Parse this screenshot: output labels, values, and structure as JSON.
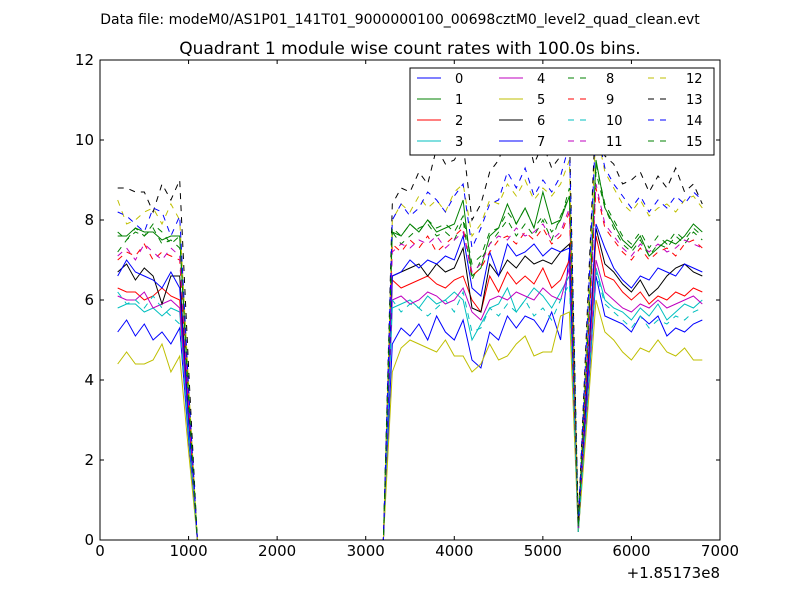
{
  "chart_data": {
    "type": "line",
    "suptitle": "Data file: modeM0/AS1P01_141T01_9000000100_00698cztM0_level2_quad_clean.evt",
    "title": "Quadrant 1 module wise count rates with 100.0s bins.",
    "xlabel": "",
    "ylabel": "",
    "x_offset_label": "+1.85173e8",
    "xlim": [
      0,
      7000
    ],
    "ylim": [
      0,
      12
    ],
    "x_ticks": [
      0,
      1000,
      2000,
      3000,
      4000,
      5000,
      6000,
      7000
    ],
    "y_ticks": [
      0,
      2,
      4,
      6,
      8,
      10,
      12
    ],
    "grid": false,
    "legend_position": "top-right",
    "x": [
      200,
      300,
      400,
      500,
      600,
      700,
      800,
      900,
      1000,
      1100,
      1200,
      1300,
      1400,
      1500,
      1600,
      1700,
      1800,
      1900,
      2000,
      2100,
      2200,
      2300,
      2400,
      2500,
      2600,
      2700,
      2800,
      2900,
      3000,
      3100,
      3200,
      3300,
      3400,
      3500,
      3600,
      3700,
      3800,
      3900,
      4000,
      4100,
      4200,
      4300,
      4400,
      4500,
      4600,
      4700,
      4800,
      4900,
      5000,
      5100,
      5200,
      5300,
      5400,
      5500,
      5600,
      5700,
      5800,
      5900,
      6000,
      6100,
      6200,
      6300,
      6400,
      6500,
      6600,
      6700,
      6800
    ],
    "series": [
      {
        "name": "0",
        "color": "#0000ff",
        "dash": "solid",
        "values": [
          5.2,
          5.5,
          5.1,
          5.4,
          5.0,
          5.2,
          4.9,
          5.3,
          2.5,
          0,
          0,
          0,
          0,
          0,
          0,
          0,
          0,
          0,
          0,
          0,
          0,
          0,
          0,
          0,
          0,
          0,
          0,
          0,
          0,
          0,
          0,
          4.9,
          5.3,
          5.1,
          5.4,
          5.0,
          5.6,
          5.2,
          5.0,
          5.5,
          4.5,
          4.3,
          5.2,
          5.0,
          5.6,
          5.3,
          5.6,
          5.5,
          5.2,
          5.7,
          5.0,
          7.2,
          0.2,
          3.3,
          6.6,
          5.6,
          5.5,
          5.4,
          5.2,
          5.6,
          5.4,
          5.6,
          5.1,
          5.3,
          5.2,
          5.4,
          5.5
        ]
      },
      {
        "name": "1",
        "color": "#008000",
        "dash": "solid",
        "values": [
          7.6,
          7.6,
          7.8,
          7.7,
          7.7,
          7.5,
          7.6,
          7.6,
          3.5,
          0,
          0,
          0,
          0,
          0,
          0,
          0,
          0,
          0,
          0,
          0,
          0,
          0,
          0,
          0,
          0,
          0,
          0,
          0,
          0,
          0,
          0,
          7.7,
          7.6,
          7.9,
          7.7,
          8.0,
          7.7,
          7.8,
          7.9,
          8.5,
          6.6,
          6.8,
          7.6,
          7.8,
          8.4,
          7.9,
          8.3,
          7.8,
          8.7,
          7.9,
          8.0,
          8.6,
          0.3,
          4.5,
          9.5,
          8.3,
          7.9,
          7.5,
          7.3,
          7.6,
          7.1,
          7.3,
          7.5,
          7.4,
          7.6,
          7.9,
          7.7
        ]
      },
      {
        "name": "2",
        "color": "#ff0000",
        "dash": "solid",
        "values": [
          6.3,
          6.2,
          6.2,
          6.0,
          6.1,
          6.3,
          6.1,
          6.0,
          3.0,
          0,
          0,
          0,
          0,
          0,
          0,
          0,
          0,
          0,
          0,
          0,
          0,
          0,
          0,
          0,
          0,
          0,
          0,
          0,
          0,
          0,
          0,
          6.5,
          6.3,
          6.4,
          6.5,
          6.6,
          6.4,
          6.3,
          6.5,
          6.6,
          6.0,
          5.7,
          6.6,
          6.2,
          6.7,
          6.4,
          6.6,
          6.4,
          6.8,
          6.3,
          6.5,
          7.0,
          0.3,
          3.8,
          7.6,
          6.6,
          6.5,
          6.2,
          6.0,
          6.2,
          5.9,
          6.1,
          6.0,
          6.2,
          6.1,
          6.3,
          6.2
        ]
      },
      {
        "name": "3",
        "color": "#00bfbf",
        "dash": "solid",
        "values": [
          5.8,
          5.9,
          5.9,
          5.7,
          5.8,
          5.6,
          5.8,
          5.7,
          2.7,
          0,
          0,
          0,
          0,
          0,
          0,
          0,
          0,
          0,
          0,
          0,
          0,
          0,
          0,
          0,
          0,
          0,
          0,
          0,
          0,
          0,
          0,
          5.8,
          5.9,
          6.0,
          5.8,
          6.1,
          5.9,
          6.0,
          6.2,
          6.0,
          5.0,
          5.4,
          5.8,
          5.9,
          6.3,
          5.7,
          6.0,
          6.3,
          6.1,
          5.8,
          6.2,
          6.6,
          0.2,
          3.5,
          6.8,
          6.0,
          5.8,
          5.7,
          5.5,
          5.8,
          5.6,
          5.9,
          5.5,
          5.7,
          5.9,
          5.8,
          6.0
        ]
      },
      {
        "name": "4",
        "color": "#bf00bf",
        "dash": "solid",
        "values": [
          6.1,
          6.0,
          6.0,
          6.2,
          5.8,
          5.9,
          6.0,
          5.8,
          2.9,
          0,
          0,
          0,
          0,
          0,
          0,
          0,
          0,
          0,
          0,
          0,
          0,
          0,
          0,
          0,
          0,
          0,
          0,
          0,
          0,
          0,
          0,
          6.0,
          6.1,
          5.9,
          6.0,
          6.2,
          6.1,
          5.9,
          6.0,
          6.3,
          5.7,
          5.5,
          6.0,
          6.1,
          6.0,
          6.2,
          6.1,
          6.0,
          6.3,
          6.1,
          6.0,
          6.8,
          0.2,
          3.6,
          7.0,
          6.2,
          6.0,
          5.8,
          5.7,
          5.9,
          5.8,
          6.0,
          5.8,
          5.9,
          6.0,
          6.1,
          5.9
        ]
      },
      {
        "name": "5",
        "color": "#bfbf00",
        "dash": "solid",
        "values": [
          4.4,
          4.7,
          4.4,
          4.4,
          4.5,
          4.9,
          4.2,
          4.6,
          2.2,
          0,
          0,
          0,
          0,
          0,
          0,
          0,
          0,
          0,
          0,
          0,
          0,
          0,
          0,
          0,
          0,
          0,
          0,
          0,
          0,
          0,
          0,
          4.2,
          4.8,
          5.0,
          4.9,
          4.8,
          4.7,
          5.0,
          4.6,
          4.6,
          4.2,
          4.4,
          4.9,
          4.5,
          4.6,
          4.9,
          5.1,
          4.6,
          4.7,
          4.7,
          5.6,
          5.7,
          0.2,
          3.0,
          6.0,
          5.2,
          5.0,
          4.7,
          4.5,
          4.8,
          4.7,
          5.0,
          4.7,
          4.6,
          4.8,
          4.5,
          4.5
        ]
      },
      {
        "name": "6",
        "color": "#000000",
        "dash": "solid",
        "values": [
          6.7,
          6.9,
          6.5,
          6.8,
          6.6,
          5.9,
          6.6,
          6.6,
          3.1,
          0,
          0,
          0,
          0,
          0,
          0,
          0,
          0,
          0,
          0,
          0,
          0,
          0,
          0,
          0,
          0,
          0,
          0,
          0,
          0,
          0,
          0,
          6.6,
          6.7,
          6.8,
          6.9,
          6.6,
          6.9,
          6.7,
          6.8,
          7.3,
          5.8,
          5.7,
          6.9,
          6.6,
          7.0,
          6.8,
          7.1,
          6.9,
          7.0,
          6.9,
          7.2,
          7.4,
          0.3,
          3.9,
          7.8,
          6.9,
          6.7,
          6.4,
          6.2,
          6.5,
          6.1,
          6.3,
          6.6,
          6.8,
          6.9,
          6.7,
          6.6
        ]
      },
      {
        "name": "7",
        "color": "#0000ff",
        "dash": "solid",
        "values": [
          6.6,
          7.0,
          6.7,
          6.6,
          6.5,
          6.3,
          6.7,
          6.3,
          3.0,
          0,
          0,
          0,
          0,
          0,
          0,
          0,
          0,
          0,
          0,
          0,
          0,
          0,
          0,
          0,
          0,
          0,
          0,
          0,
          0,
          0,
          0,
          6.6,
          6.7,
          7.0,
          6.8,
          7.0,
          6.9,
          7.1,
          7.0,
          7.6,
          6.3,
          6.1,
          7.2,
          6.6,
          7.4,
          7.1,
          7.2,
          7.4,
          7.1,
          7.3,
          7.2,
          7.3,
          0.3,
          4.0,
          7.9,
          7.3,
          6.8,
          6.5,
          6.3,
          6.6,
          6.5,
          6.8,
          6.7,
          6.6,
          6.9,
          6.8,
          6.7
        ]
      },
      {
        "name": "8",
        "color": "#008000",
        "dash": "dashed",
        "values": [
          7.2,
          7.5,
          7.7,
          7.6,
          7.8,
          7.4,
          7.5,
          7.3,
          3.5,
          0,
          0,
          0,
          0,
          0,
          0,
          0,
          0,
          0,
          0,
          0,
          0,
          0,
          0,
          0,
          0,
          0,
          0,
          0,
          0,
          0,
          0,
          7.7,
          7.4,
          7.6,
          7.8,
          7.9,
          7.6,
          7.7,
          7.5,
          8.0,
          6.5,
          7.0,
          7.4,
          7.7,
          8.0,
          7.6,
          7.9,
          7.6,
          8.0,
          7.5,
          8.1,
          8.6,
          0.3,
          4.6,
          9.2,
          8.3,
          7.8,
          7.4,
          7.2,
          7.5,
          7.1,
          7.4,
          7.3,
          7.6,
          7.4,
          7.7,
          7.5
        ]
      },
      {
        "name": "9",
        "color": "#ff0000",
        "dash": "dashed",
        "values": [
          7.0,
          7.2,
          7.1,
          7.4,
          7.0,
          7.2,
          7.1,
          7.0,
          3.3,
          0,
          0,
          0,
          0,
          0,
          0,
          0,
          0,
          0,
          0,
          0,
          0,
          0,
          0,
          0,
          0,
          0,
          0,
          0,
          0,
          0,
          0,
          7.4,
          7.2,
          7.5,
          7.3,
          7.6,
          7.2,
          7.4,
          7.6,
          7.8,
          6.6,
          6.8,
          7.2,
          7.5,
          7.6,
          7.4,
          7.7,
          7.5,
          7.8,
          7.4,
          7.6,
          8.2,
          0.3,
          4.4,
          8.8,
          7.8,
          7.5,
          7.2,
          7.0,
          7.3,
          7.0,
          7.2,
          7.3,
          7.1,
          7.4,
          7.5,
          7.3
        ]
      },
      {
        "name": "10",
        "color": "#00bfbf",
        "dash": "dashed",
        "values": [
          6.2,
          5.9,
          6.0,
          5.8,
          6.1,
          5.8,
          5.6,
          5.4,
          2.7,
          0,
          0,
          0,
          0,
          0,
          0,
          0,
          0,
          0,
          0,
          0,
          0,
          0,
          0,
          0,
          0,
          0,
          0,
          0,
          0,
          0,
          0,
          6.0,
          5.7,
          5.9,
          5.8,
          5.6,
          5.8,
          6.0,
          5.7,
          6.2,
          5.2,
          5.3,
          5.8,
          5.6,
          5.9,
          5.7,
          6.0,
          5.6,
          5.8,
          5.5,
          6.0,
          6.4,
          0.2,
          3.4,
          6.7,
          5.9,
          5.7,
          5.5,
          5.3,
          5.6,
          5.3,
          5.5,
          5.4,
          5.6,
          5.5,
          5.7,
          5.8
        ]
      },
      {
        "name": "11",
        "color": "#bf00bf",
        "dash": "dashed",
        "values": [
          7.1,
          7.3,
          7.0,
          7.4,
          7.2,
          7.0,
          7.3,
          7.1,
          3.4,
          0,
          0,
          0,
          0,
          0,
          0,
          0,
          0,
          0,
          0,
          0,
          0,
          0,
          0,
          0,
          0,
          0,
          0,
          0,
          0,
          0,
          0,
          7.2,
          7.4,
          7.3,
          7.5,
          7.4,
          7.6,
          7.3,
          7.5,
          7.7,
          6.7,
          6.9,
          7.4,
          7.6,
          7.5,
          7.8,
          7.6,
          7.7,
          7.9,
          7.5,
          7.7,
          8.3,
          0.3,
          4.5,
          8.9,
          7.9,
          7.6,
          7.3,
          7.1,
          7.4,
          7.2,
          7.4,
          7.2,
          7.3,
          7.5,
          7.4,
          7.3
        ]
      },
      {
        "name": "12",
        "color": "#bfbf00",
        "dash": "dashed",
        "values": [
          8.5,
          7.9,
          8.0,
          8.2,
          8.3,
          7.9,
          8.4,
          8.0,
          3.9,
          0,
          0,
          0,
          0,
          0,
          0,
          0,
          0,
          0,
          0,
          0,
          0,
          0,
          0,
          0,
          0,
          0,
          0,
          0,
          0,
          0,
          0,
          8.0,
          8.4,
          8.2,
          8.6,
          8.3,
          8.5,
          8.2,
          8.7,
          8.9,
          7.6,
          7.9,
          8.5,
          8.4,
          8.9,
          8.6,
          9.0,
          8.5,
          8.8,
          8.6,
          8.9,
          9.5,
          0.4,
          5.2,
          10.3,
          9.2,
          8.8,
          8.4,
          8.2,
          8.5,
          8.1,
          8.3,
          8.4,
          8.2,
          8.5,
          8.6,
          8.3
        ]
      },
      {
        "name": "13",
        "color": "#000000",
        "dash": "dashed",
        "values": [
          8.8,
          8.8,
          8.7,
          8.7,
          8.2,
          8.9,
          8.5,
          9.0,
          4.3,
          0,
          0,
          0,
          0,
          0,
          0,
          0,
          0,
          0,
          0,
          0,
          0,
          0,
          0,
          0,
          0,
          0,
          0,
          0,
          0,
          0,
          0,
          8.4,
          8.8,
          8.7,
          9.2,
          8.9,
          9.8,
          9.4,
          9.5,
          9.9,
          8.0,
          8.4,
          9.2,
          9.5,
          10.1,
          9.7,
          10.3,
          9.4,
          9.9,
          9.3,
          9.6,
          10.2,
          0.4,
          5.6,
          10.8,
          9.6,
          9.4,
          8.9,
          9.0,
          9.2,
          8.7,
          9.1,
          8.8,
          9.3,
          8.7,
          8.9,
          8.4
        ]
      },
      {
        "name": "14",
        "color": "#0000ff",
        "dash": "dashed",
        "values": [
          8.2,
          8.1,
          7.9,
          7.7,
          8.3,
          8.2,
          7.6,
          8.1,
          3.8,
          0,
          0,
          0,
          0,
          0,
          0,
          0,
          0,
          0,
          0,
          0,
          0,
          0,
          0,
          0,
          0,
          0,
          0,
          0,
          0,
          0,
          0,
          8.0,
          8.4,
          8.1,
          8.3,
          8.7,
          8.5,
          8.2,
          8.6,
          8.9,
          7.3,
          7.8,
          8.4,
          8.5,
          9.2,
          8.8,
          9.3,
          8.6,
          9.0,
          8.7,
          9.1,
          9.9,
          0.4,
          5.3,
          10.4,
          9.3,
          8.9,
          8.6,
          8.3,
          8.6,
          8.2,
          8.5,
          8.3,
          8.6,
          8.4,
          8.7,
          8.5
        ]
      },
      {
        "name": "15",
        "color": "#008000",
        "dash": "dashed",
        "values": [
          7.7,
          7.5,
          7.8,
          7.6,
          7.9,
          7.7,
          7.4,
          7.6,
          3.6,
          0,
          0,
          0,
          0,
          0,
          0,
          0,
          0,
          0,
          0,
          0,
          0,
          0,
          0,
          0,
          0,
          0,
          0,
          0,
          0,
          0,
          0,
          7.8,
          7.6,
          7.9,
          7.7,
          8.0,
          7.8,
          7.9,
          7.7,
          8.1,
          6.9,
          7.1,
          7.7,
          7.8,
          8.2,
          7.9,
          8.3,
          7.8,
          8.1,
          7.7,
          8.0,
          8.8,
          0.3,
          4.7,
          9.4,
          8.4,
          8.0,
          7.6,
          7.4,
          7.7,
          7.3,
          7.6,
          7.4,
          7.7,
          7.5,
          7.8,
          7.6
        ]
      }
    ]
  }
}
